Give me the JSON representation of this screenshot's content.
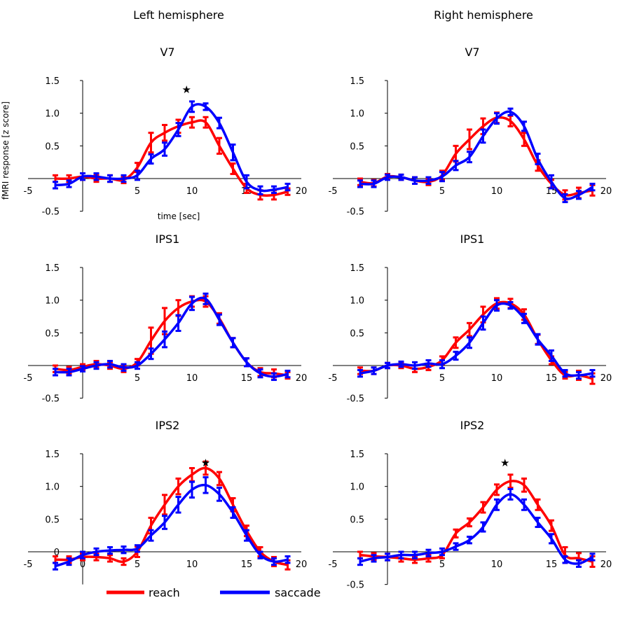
{
  "figure": {
    "column_titles": [
      "Left hemisphere",
      "Right hemisphere"
    ],
    "ylabel": "fMRI response [z score]",
    "xlabel": "time [sec]",
    "legend": [
      {
        "label": "reach",
        "color": "#ff0000"
      },
      {
        "label": "saccade",
        "color": "#0000ff"
      }
    ],
    "significance_marker": "★"
  },
  "chart_data": [
    {
      "type": "line",
      "title": "V7",
      "hemisphere": "Left hemisphere",
      "xlim": [
        -5,
        20
      ],
      "ylim": [
        -0.5,
        1.5
      ],
      "xticks": [
        -5,
        5,
        10,
        15,
        20
      ],
      "yticks": [
        -0.5,
        0.5,
        1.0,
        1.5
      ],
      "ytick_labels": [
        "-0.5",
        "0.5",
        "1.0",
        "1.5"
      ],
      "x": [
        -2.5,
        -1.25,
        0,
        1.25,
        2.5,
        3.75,
        5,
        6.25,
        7.5,
        8.75,
        10,
        11.25,
        12.5,
        13.75,
        15,
        16.25,
        17.5,
        18.75
      ],
      "series": [
        {
          "name": "reach",
          "values": [
            0.0,
            0.0,
            0.03,
            0.0,
            0.0,
            -0.02,
            0.17,
            0.55,
            0.7,
            0.8,
            0.86,
            0.86,
            0.5,
            0.15,
            -0.15,
            -0.25,
            -0.25,
            -0.2
          ],
          "err": [
            0.05,
            0.05,
            0.05,
            0.05,
            0.05,
            0.05,
            0.07,
            0.15,
            0.12,
            0.1,
            0.08,
            0.08,
            0.12,
            0.08,
            0.07,
            0.07,
            0.07,
            0.05
          ]
        },
        {
          "name": "saccade",
          "values": [
            -0.1,
            -0.08,
            0.03,
            0.03,
            0.0,
            0.0,
            0.05,
            0.3,
            0.45,
            0.75,
            1.1,
            1.1,
            0.85,
            0.4,
            -0.05,
            -0.18,
            -0.17,
            -0.13
          ],
          "err": [
            0.05,
            0.05,
            0.05,
            0.05,
            0.05,
            0.05,
            0.07,
            0.07,
            0.1,
            0.1,
            0.08,
            0.05,
            0.08,
            0.12,
            0.1,
            0.06,
            0.05,
            0.05
          ]
        }
      ],
      "star_x": 9.5
    },
    {
      "type": "line",
      "title": "V7",
      "hemisphere": "Right hemisphere",
      "xlim": [
        -5,
        20
      ],
      "ylim": [
        -0.5,
        1.5
      ],
      "xticks": [
        -5,
        5,
        10,
        15,
        20
      ],
      "yticks": [
        -0.5,
        0.5,
        1.0,
        1.5
      ],
      "ytick_labels": [
        "-0.5",
        "0.5",
        "1.0",
        "1.5"
      ],
      "x": [
        -2.5,
        -1.25,
        0,
        1.25,
        2.5,
        3.75,
        5,
        6.25,
        7.5,
        8.75,
        10,
        11.25,
        12.5,
        13.75,
        15,
        16.25,
        17.5,
        18.75
      ],
      "series": [
        {
          "name": "reach",
          "values": [
            -0.05,
            -0.07,
            0.03,
            0.02,
            -0.03,
            -0.05,
            0.05,
            0.38,
            0.6,
            0.8,
            0.93,
            0.88,
            0.6,
            0.2,
            -0.08,
            -0.25,
            -0.22,
            -0.18
          ],
          "err": [
            0.05,
            0.05,
            0.04,
            0.04,
            0.05,
            0.05,
            0.07,
            0.12,
            0.15,
            0.12,
            0.08,
            0.08,
            0.1,
            0.08,
            0.06,
            0.07,
            0.08,
            0.08
          ]
        },
        {
          "name": "saccade",
          "values": [
            -0.08,
            -0.08,
            0.02,
            0.02,
            -0.03,
            -0.03,
            0.03,
            0.2,
            0.33,
            0.65,
            0.92,
            1.02,
            0.8,
            0.3,
            -0.05,
            -0.3,
            -0.25,
            -0.13
          ],
          "err": [
            0.05,
            0.05,
            0.04,
            0.04,
            0.05,
            0.05,
            0.07,
            0.07,
            0.08,
            0.1,
            0.08,
            0.05,
            0.07,
            0.08,
            0.1,
            0.06,
            0.06,
            0.05
          ]
        }
      ]
    },
    {
      "type": "line",
      "title": "IPS1",
      "hemisphere": "Left hemisphere",
      "xlim": [
        -5,
        20
      ],
      "ylim": [
        -0.5,
        1.5
      ],
      "xticks": [
        -5,
        5,
        10,
        15,
        20
      ],
      "yticks": [
        -0.5,
        0.5,
        1.0,
        1.5
      ],
      "ytick_labels": [
        "-0.5",
        "0.5",
        "1.0",
        "1.5"
      ],
      "x": [
        -2.5,
        -1.25,
        0,
        1.25,
        2.5,
        3.75,
        5,
        6.25,
        7.5,
        8.75,
        10,
        11.25,
        12.5,
        13.75,
        15,
        16.25,
        17.5,
        18.75
      ],
      "series": [
        {
          "name": "reach",
          "values": [
            -0.05,
            -0.07,
            -0.02,
            0.02,
            0.0,
            -0.05,
            0.05,
            0.38,
            0.68,
            0.88,
            0.98,
            0.98,
            0.72,
            0.35,
            0.05,
            -0.1,
            -0.12,
            -0.15
          ],
          "err": [
            0.05,
            0.05,
            0.04,
            0.05,
            0.05,
            0.05,
            0.05,
            0.2,
            0.2,
            0.12,
            0.08,
            0.08,
            0.08,
            0.07,
            0.06,
            0.06,
            0.06,
            0.05
          ]
        },
        {
          "name": "saccade",
          "values": [
            -0.1,
            -0.1,
            -0.05,
            0.0,
            0.02,
            -0.03,
            0.0,
            0.18,
            0.4,
            0.65,
            0.95,
            1.02,
            0.7,
            0.35,
            0.05,
            -0.12,
            -0.17,
            -0.13
          ],
          "err": [
            0.05,
            0.05,
            0.04,
            0.05,
            0.05,
            0.05,
            0.05,
            0.08,
            0.12,
            0.12,
            0.1,
            0.08,
            0.08,
            0.07,
            0.06,
            0.06,
            0.05,
            0.05
          ]
        }
      ]
    },
    {
      "type": "line",
      "title": "IPS1",
      "hemisphere": "Right hemisphere",
      "xlim": [
        -5,
        20
      ],
      "ylim": [
        -0.5,
        1.5
      ],
      "xticks": [
        -5,
        5,
        10,
        15,
        20
      ],
      "yticks": [
        -0.5,
        0.5,
        1.0,
        1.5
      ],
      "ytick_labels": [
        "-0.5",
        "0.5",
        "1.0",
        "1.5"
      ],
      "x": [
        -2.5,
        -1.25,
        0,
        1.25,
        2.5,
        3.75,
        5,
        6.25,
        7.5,
        8.75,
        10,
        11.25,
        12.5,
        13.75,
        15,
        16.25,
        17.5,
        18.75
      ],
      "series": [
        {
          "name": "reach",
          "values": [
            -0.08,
            -0.08,
            0.0,
            0.0,
            -0.05,
            -0.02,
            0.08,
            0.35,
            0.55,
            0.78,
            0.95,
            0.95,
            0.78,
            0.4,
            0.08,
            -0.15,
            -0.15,
            -0.2
          ],
          "err": [
            0.05,
            0.05,
            0.04,
            0.04,
            0.05,
            0.05,
            0.06,
            0.08,
            0.1,
            0.12,
            0.08,
            0.07,
            0.08,
            0.07,
            0.06,
            0.05,
            0.07,
            0.08
          ]
        },
        {
          "name": "saccade",
          "values": [
            -0.12,
            -0.08,
            0.0,
            0.02,
            0.0,
            0.03,
            0.02,
            0.15,
            0.35,
            0.65,
            0.92,
            0.92,
            0.72,
            0.4,
            0.15,
            -0.12,
            -0.15,
            -0.12
          ],
          "err": [
            0.05,
            0.05,
            0.04,
            0.04,
            0.05,
            0.05,
            0.06,
            0.06,
            0.08,
            0.1,
            0.08,
            0.05,
            0.07,
            0.08,
            0.08,
            0.05,
            0.05,
            0.05
          ]
        }
      ]
    },
    {
      "type": "line",
      "title": "IPS2",
      "hemisphere": "Left hemisphere",
      "xlim": [
        -5,
        20
      ],
      "ylim": [
        -0.5,
        1.5
      ],
      "xticks": [
        -5,
        0,
        5,
        10,
        15,
        20
      ],
      "yticks": [
        0,
        0.5,
        1.0,
        1.5
      ],
      "ytick_labels": [
        "0",
        "0.5",
        "1.0",
        "1.5"
      ],
      "x": [
        -2.5,
        -1.25,
        0,
        1.25,
        2.5,
        3.75,
        5,
        6.25,
        7.5,
        8.75,
        10,
        11.25,
        12.5,
        13.75,
        15,
        16.25,
        17.5,
        18.75
      ],
      "series": [
        {
          "name": "reach",
          "values": [
            -0.12,
            -0.12,
            -0.08,
            -0.08,
            -0.1,
            -0.15,
            0.0,
            0.4,
            0.72,
            1.0,
            1.18,
            1.28,
            1.12,
            0.72,
            0.32,
            0.0,
            -0.15,
            -0.2
          ],
          "err": [
            0.05,
            0.05,
            0.05,
            0.05,
            0.05,
            0.05,
            0.08,
            0.12,
            0.15,
            0.12,
            0.1,
            0.1,
            0.1,
            0.1,
            0.08,
            0.07,
            0.07,
            0.07
          ]
        },
        {
          "name": "saccade",
          "values": [
            -0.22,
            -0.15,
            -0.05,
            0.0,
            0.02,
            0.03,
            0.05,
            0.25,
            0.45,
            0.72,
            0.95,
            1.02,
            0.88,
            0.6,
            0.25,
            -0.05,
            -0.15,
            -0.12
          ],
          "err": [
            0.05,
            0.05,
            0.05,
            0.05,
            0.05,
            0.05,
            0.05,
            0.08,
            0.1,
            0.12,
            0.12,
            0.12,
            0.1,
            0.08,
            0.08,
            0.05,
            0.05,
            0.05
          ]
        }
      ],
      "star_x": 11.25
    },
    {
      "type": "line",
      "title": "IPS2",
      "hemisphere": "Right hemisphere",
      "xlim": [
        -5,
        20
      ],
      "ylim": [
        -0.5,
        1.5
      ],
      "xticks": [
        -5,
        5,
        10,
        15,
        20
      ],
      "yticks": [
        -0.5,
        0.5,
        1.0,
        1.5
      ],
      "ytick_labels": [
        "-0.5",
        "0.5",
        "1.0",
        "1.5"
      ],
      "x": [
        -2.5,
        -1.25,
        0,
        1.25,
        2.5,
        3.75,
        5,
        6.25,
        7.5,
        8.75,
        10,
        11.25,
        12.5,
        13.75,
        15,
        16.25,
        17.5,
        18.75
      ],
      "series": [
        {
          "name": "reach",
          "values": [
            -0.05,
            -0.07,
            -0.08,
            -0.1,
            -0.12,
            -0.1,
            -0.05,
            0.28,
            0.45,
            0.68,
            0.95,
            1.08,
            1.02,
            0.72,
            0.4,
            -0.05,
            -0.1,
            -0.15
          ],
          "err": [
            0.05,
            0.05,
            0.05,
            0.05,
            0.05,
            0.05,
            0.05,
            0.06,
            0.06,
            0.08,
            0.08,
            0.1,
            0.1,
            0.08,
            0.08,
            0.12,
            0.08,
            0.08
          ]
        },
        {
          "name": "saccade",
          "values": [
            -0.15,
            -0.1,
            -0.08,
            -0.05,
            -0.05,
            -0.02,
            0.0,
            0.08,
            0.18,
            0.38,
            0.72,
            0.88,
            0.72,
            0.45,
            0.2,
            -0.12,
            -0.18,
            -0.08
          ],
          "err": [
            0.05,
            0.05,
            0.05,
            0.05,
            0.05,
            0.05,
            0.05,
            0.05,
            0.05,
            0.07,
            0.08,
            0.08,
            0.08,
            0.07,
            0.07,
            0.05,
            0.05,
            0.05
          ]
        }
      ],
      "star_x": 10.75
    }
  ]
}
